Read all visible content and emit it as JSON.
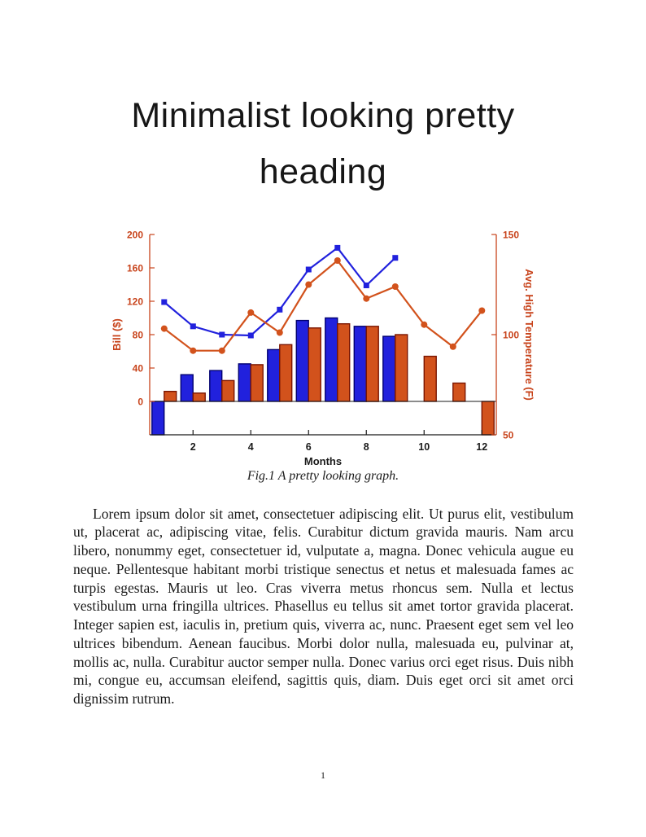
{
  "heading": {
    "text": "Minimalist looking pretty heading",
    "lines": [
      "Minimalist looking pretty",
      "heading"
    ]
  },
  "figure": {
    "caption": "Fig.1 A pretty looking graph."
  },
  "body": {
    "paragraph": "Lorem ipsum dolor sit amet, consectetuer adipiscing elit. Ut purus elit, vestibulum ut, placerat ac, adipiscing vitae, felis. Curabitur dictum gravida mauris. Nam arcu libero, nonummy eget, consectetuer id, vulputate a, magna. Donec vehicula augue eu neque. Pellentesque habitant morbi tristique senectus et netus et malesuada fames ac turpis egestas. Mauris ut leo. Cras viverra metus rhoncus sem. Nulla et lectus vestibulum urna fringilla ultrices. Phasellus eu tellus sit amet tortor gravida placerat. Integer sapien est, iaculis in, pretium quis, viverra ac, nunc. Praesent eget sem vel leo ultrices bibendum. Aenean faucibus. Morbi dolor nulla, malesuada eu, pulvinar at, mollis ac, nulla. Curabitur auctor semper nulla. Donec varius orci eget risus. Duis nibh mi, congue eu, accumsan eleifend, sagittis quis, diam. Duis eget orci sit amet orci dignissim rutrum."
  },
  "footer": {
    "page_number": "1"
  },
  "chart_data": {
    "type": "combo",
    "title": "",
    "xlabel": "Months",
    "x": [
      1,
      2,
      3,
      4,
      5,
      6,
      7,
      8,
      9,
      10,
      11,
      12
    ],
    "x_ticks": [
      2,
      4,
      6,
      8,
      10,
      12
    ],
    "xlim": [
      0.5,
      12.5
    ],
    "grid": false,
    "legend": false,
    "x_tick_color": "#1a1a1a",
    "left_axis": {
      "label": "Bill ($)",
      "lim": [
        -40,
        200
      ],
      "ticks": [
        0,
        40,
        80,
        120,
        160,
        200
      ],
      "color": "#c8441c"
    },
    "right_axis": {
      "label": "Avg. High Temperature (F)",
      "lim": [
        50,
        150
      ],
      "ticks": [
        50,
        100,
        150
      ],
      "color": "#c8441c"
    },
    "series": [
      {
        "name": "blue-bars",
        "kind": "bar",
        "axis": "left",
        "color": "#2121dd",
        "edge_color": "#000070",
        "values": [
          -40,
          32,
          37,
          45,
          62,
          97,
          100,
          90,
          78,
          0,
          0,
          0
        ]
      },
      {
        "name": "orange-bars",
        "kind": "bar",
        "axis": "left",
        "color": "#d2521c",
        "edge_color": "#7a1500",
        "values": [
          12,
          10,
          25,
          44,
          68,
          88,
          93,
          90,
          80,
          54,
          22,
          -40
        ]
      },
      {
        "name": "blue-line",
        "kind": "line",
        "axis": "left",
        "marker": "square",
        "color": "#2121dd",
        "values": [
          119,
          90,
          80,
          79,
          110,
          158,
          184,
          139,
          172,
          null,
          null,
          null
        ]
      },
      {
        "name": "orange-line",
        "kind": "line",
        "axis": "right",
        "marker": "circle",
        "color": "#d2521c",
        "values": [
          103,
          92,
          92,
          111,
          101,
          125,
          137,
          118,
          124,
          105,
          94,
          112
        ]
      }
    ]
  }
}
